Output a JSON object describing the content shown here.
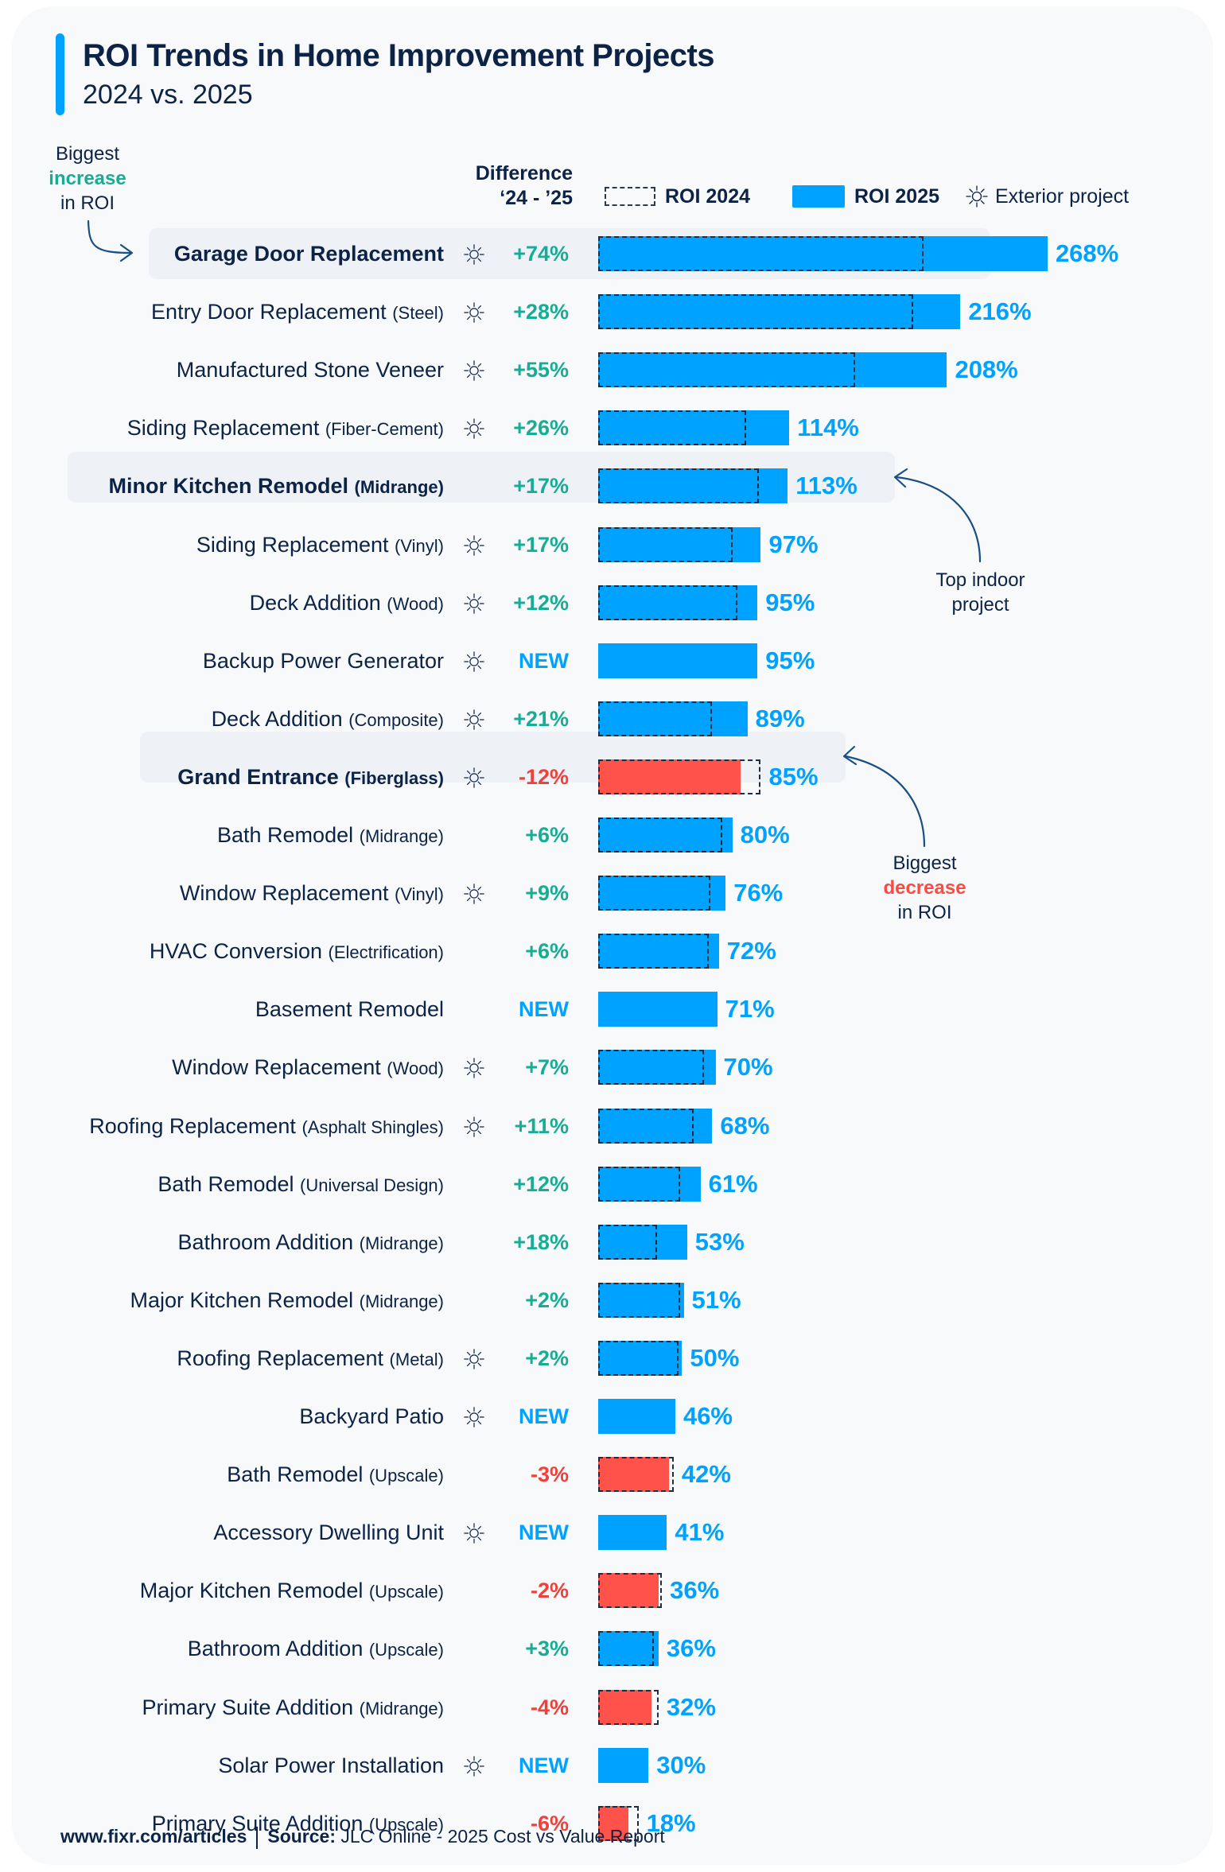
{
  "header": {
    "title": "ROI Trends in Home Improvement Projects",
    "subtitle": "2024 vs. 2025"
  },
  "legend": {
    "diff_line1": "Difference",
    "diff_line2": "‘24 - ’25",
    "roi2024": "ROI 2024",
    "roi2025": "ROI 2025",
    "exterior": "Exterior project"
  },
  "annotations": {
    "increase": {
      "line1": "Biggest",
      "line2": "increase",
      "line3": "in ROI"
    },
    "indoor": {
      "line1": "Top indoor",
      "line2": "project"
    },
    "decrease": {
      "line1": "Biggest",
      "line2": "decrease",
      "line3": "in ROI"
    }
  },
  "colors": {
    "roi2025": "#00a2ff",
    "decrease_bar": "#fe524a",
    "positive_diff": "#17ad94",
    "negative_diff": "#ef403a",
    "new_diff": "#00a2ff",
    "text": "#0d2346",
    "highlight_bg": "#eef2f7"
  },
  "footer": {
    "site": "www.fixr.com/articles",
    "source_label": "Source:",
    "source_text": "JLC Online - 2025 Cost vs Value Report"
  },
  "chart_data": {
    "type": "bar",
    "orientation": "horizontal",
    "title": "ROI Trends in Home Improvement Projects",
    "subtitle": "2024 vs. 2025",
    "xlabel": "",
    "ylabel": "",
    "unit": "%",
    "xlim": [
      0,
      268
    ],
    "grid": false,
    "legend_position": "top",
    "series": [
      {
        "name": "ROI 2024",
        "style": "dashed-outline"
      },
      {
        "name": "ROI 2025",
        "style": "solid"
      }
    ],
    "rows": [
      {
        "name": "Garage Door Replacement",
        "sub": "",
        "exterior": true,
        "diff": "+74%",
        "roi2024": 194,
        "roi2025": 268,
        "bold": true
      },
      {
        "name": "Entry Door Replacement",
        "sub": "(Steel)",
        "exterior": true,
        "diff": "+28%",
        "roi2024": 188,
        "roi2025": 216,
        "bold": false
      },
      {
        "name": "Manufactured Stone Veneer",
        "sub": "",
        "exterior": true,
        "diff": "+55%",
        "roi2024": 153,
        "roi2025": 208,
        "bold": false
      },
      {
        "name": "Siding Replacement",
        "sub": "(Fiber-Cement)",
        "exterior": true,
        "diff": "+26%",
        "roi2024": 88,
        "roi2025": 114,
        "bold": false
      },
      {
        "name": "Minor Kitchen Remodel",
        "sub": "(Midrange)",
        "exterior": false,
        "diff": "+17%",
        "roi2024": 96,
        "roi2025": 113,
        "bold": true
      },
      {
        "name": "Siding Replacement",
        "sub": "(Vinyl)",
        "exterior": true,
        "diff": "+17%",
        "roi2024": 80,
        "roi2025": 97,
        "bold": false
      },
      {
        "name": "Deck Addition",
        "sub": "(Wood)",
        "exterior": true,
        "diff": "+12%",
        "roi2024": 83,
        "roi2025": 95,
        "bold": false
      },
      {
        "name": "Backup Power Generator",
        "sub": "",
        "exterior": true,
        "diff": "NEW",
        "roi2024": null,
        "roi2025": 95,
        "bold": false
      },
      {
        "name": "Deck Addition",
        "sub": "(Composite)",
        "exterior": true,
        "diff": "+21%",
        "roi2024": 68,
        "roi2025": 89,
        "bold": false
      },
      {
        "name": "Grand Entrance",
        "sub": "(Fiberglass)",
        "exterior": true,
        "diff": "-12%",
        "roi2024": 97,
        "roi2025": 85,
        "bold": true
      },
      {
        "name": "Bath Remodel",
        "sub": "(Midrange)",
        "exterior": false,
        "diff": "+6%",
        "roi2024": 74,
        "roi2025": 80,
        "bold": false
      },
      {
        "name": "Window Replacement",
        "sub": "(Vinyl)",
        "exterior": true,
        "diff": "+9%",
        "roi2024": 67,
        "roi2025": 76,
        "bold": false
      },
      {
        "name": "HVAC Conversion",
        "sub": "(Electrification)",
        "exterior": false,
        "diff": "+6%",
        "roi2024": 66,
        "roi2025": 72,
        "bold": false
      },
      {
        "name": "Basement Remodel",
        "sub": "",
        "exterior": false,
        "diff": "NEW",
        "roi2024": null,
        "roi2025": 71,
        "bold": false
      },
      {
        "name": "Window Replacement",
        "sub": "(Wood)",
        "exterior": true,
        "diff": "+7%",
        "roi2024": 63,
        "roi2025": 70,
        "bold": false
      },
      {
        "name": "Roofing Replacement",
        "sub": "(Asphalt Shingles)",
        "exterior": true,
        "diff": "+11%",
        "roi2024": 57,
        "roi2025": 68,
        "bold": false
      },
      {
        "name": "Bath Remodel",
        "sub": "(Universal Design)",
        "exterior": false,
        "diff": "+12%",
        "roi2024": 49,
        "roi2025": 61,
        "bold": false
      },
      {
        "name": "Bathroom Addition ",
        "sub": "(Midrange)",
        "exterior": false,
        "diff": "+18%",
        "roi2024": 35,
        "roi2025": 53,
        "bold": false
      },
      {
        "name": "Major Kitchen Remodel",
        "sub": "(Midrange)",
        "exterior": false,
        "diff": "+2%",
        "roi2024": 49,
        "roi2025": 51,
        "bold": false
      },
      {
        "name": "Roofing Replacement",
        "sub": "(Metal)",
        "exterior": true,
        "diff": "+2%",
        "roi2024": 48,
        "roi2025": 50,
        "bold": false
      },
      {
        "name": "Backyard Patio",
        "sub": "",
        "exterior": true,
        "diff": "NEW",
        "roi2024": null,
        "roi2025": 46,
        "bold": false
      },
      {
        "name": "Bath Remodel",
        "sub": "(Upscale)",
        "exterior": false,
        "diff": "-3%",
        "roi2024": 45,
        "roi2025": 42,
        "bold": false
      },
      {
        "name": "Accessory Dwelling Unit",
        "sub": "",
        "exterior": true,
        "diff": "NEW",
        "roi2024": null,
        "roi2025": 41,
        "bold": false
      },
      {
        "name": "Major Kitchen Remodel",
        "sub": "(Upscale)",
        "exterior": false,
        "diff": "-2%",
        "roi2024": 38,
        "roi2025": 36,
        "bold": false
      },
      {
        "name": "Bathroom Addition",
        "sub": "(Upscale)",
        "exterior": false,
        "diff": "+3%",
        "roi2024": 33,
        "roi2025": 36,
        "bold": false
      },
      {
        "name": "Primary Suite Addition",
        "sub": "(Midrange)",
        "exterior": false,
        "diff": "-4%",
        "roi2024": 36,
        "roi2025": 32,
        "bold": false
      },
      {
        "name": "Solar Power Installation",
        "sub": "",
        "exterior": true,
        "diff": "NEW",
        "roi2024": null,
        "roi2025": 30,
        "bold": false
      },
      {
        "name": "Primary Suite Addition",
        "sub": "(Upscale)",
        "exterior": false,
        "diff": "-6%",
        "roi2024": 24,
        "roi2025": 18,
        "bold": false
      }
    ]
  }
}
